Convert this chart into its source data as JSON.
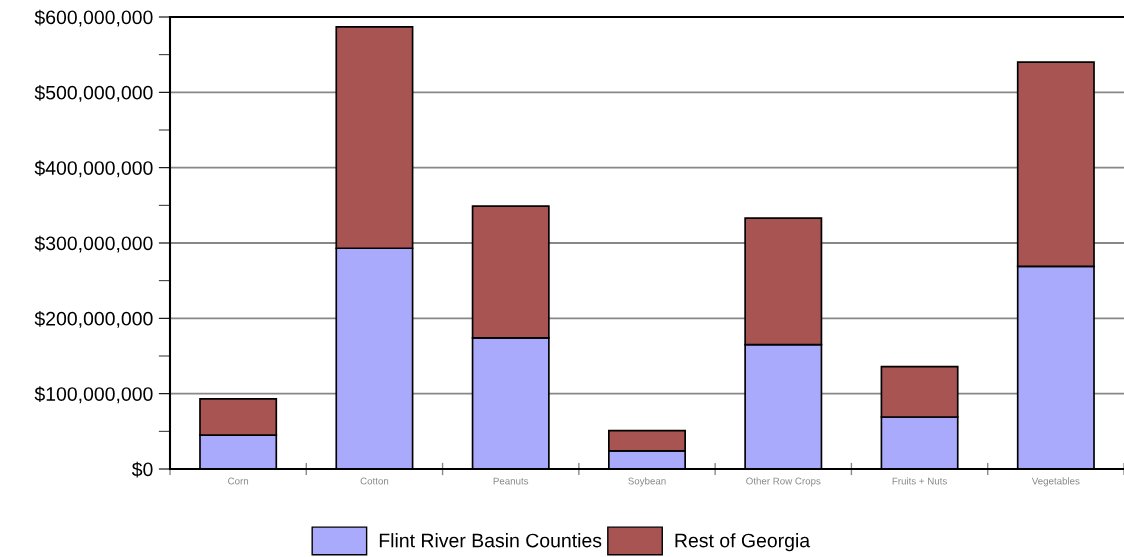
{
  "chart_data": {
    "type": "bar",
    "stacked": true,
    "categories": [
      "Corn",
      "Cotton",
      "Peanuts",
      "Soybean",
      "Other Row Crops",
      "Fruits + Nuts",
      "Vegetables"
    ],
    "series": [
      {
        "name": "Flint River Basin Counties",
        "color": "#aaaafc",
        "values": [
          45000000,
          293000000,
          174000000,
          24000000,
          165000000,
          69000000,
          269000000
        ]
      },
      {
        "name": "Rest of Georgia",
        "color": "#a85452",
        "values": [
          48000000,
          294000000,
          175000000,
          27000000,
          168000000,
          67000000,
          271000000
        ]
      }
    ],
    "ylim": [
      0,
      600000000
    ],
    "yticks": [
      {
        "value": 0,
        "label": "$0"
      },
      {
        "value": 50000000,
        "label": null
      },
      {
        "value": 100000000,
        "label": "$100,000,000"
      },
      {
        "value": 150000000,
        "label": null
      },
      {
        "value": 200000000,
        "label": "$200,000,000"
      },
      {
        "value": 250000000,
        "label": null
      },
      {
        "value": 300000000,
        "label": "$300,000,000"
      },
      {
        "value": 350000000,
        "label": null
      },
      {
        "value": 400000000,
        "label": "$400,000,000"
      },
      {
        "value": 450000000,
        "label": null
      },
      {
        "value": 500000000,
        "label": "$500,000,000"
      },
      {
        "value": 550000000,
        "label": null
      },
      {
        "value": 600000000,
        "label": "$600,000,000"
      }
    ],
    "grid": "y",
    "legend": "bottom"
  }
}
